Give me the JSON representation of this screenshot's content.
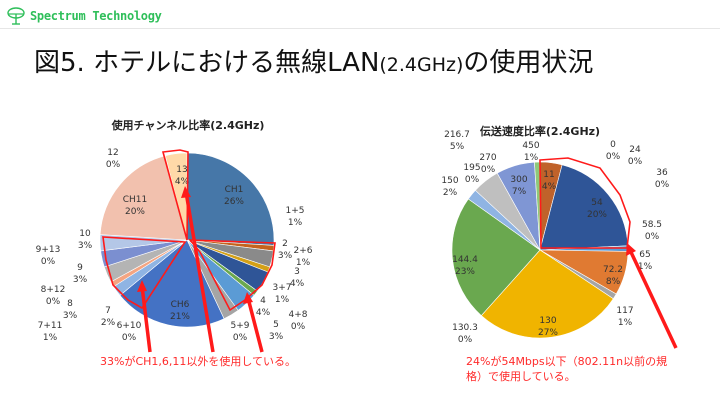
{
  "header": {
    "logo_text": "Spectrum Technology",
    "title_main": "図5. ホテルにおける無線LAN",
    "title_paren": "(2.4GHz)",
    "title_tail": "の使用状況"
  },
  "chart_data": [
    {
      "type": "pie",
      "title": "使用チャンネル比率(2.4GHz)",
      "start": "top",
      "direction": "clockwise",
      "slices": [
        {
          "label": "CH1",
          "pct_label": "26%",
          "value": 26,
          "color": "#4677a8"
        },
        {
          "label": "1+5",
          "pct_label": "1%",
          "value": 1,
          "color": "#c5631d"
        },
        {
          "label": "2",
          "pct_label": "3%",
          "value": 3,
          "color": "#8a8a8a"
        },
        {
          "label": "2+6",
          "pct_label": "1%",
          "value": 1,
          "color": "#d4a017"
        },
        {
          "label": "3",
          "pct_label": "4%",
          "value": 4,
          "color": "#2f5597"
        },
        {
          "label": "3+7",
          "pct_label": "1%",
          "value": 1,
          "color": "#6aa84f"
        },
        {
          "label": "4",
          "pct_label": "4%",
          "value": 4,
          "color": "#5b9bd5"
        },
        {
          "label": "4+8",
          "pct_label": "0%",
          "value": 0,
          "color": "#ed7d31"
        },
        {
          "label": "5",
          "pct_label": "3%",
          "value": 3,
          "color": "#a5a5a5"
        },
        {
          "label": "5+9",
          "pct_label": "0%",
          "value": 0,
          "color": "#ffc000"
        },
        {
          "label": "CH6",
          "pct_label": "21%",
          "value": 21,
          "color": "#4472c4"
        },
        {
          "label": "6+10",
          "pct_label": "0%",
          "value": 0,
          "color": "#70ad47"
        },
        {
          "label": "7",
          "pct_label": "2%",
          "value": 2,
          "color": "#8fb4e3"
        },
        {
          "label": "7+11",
          "pct_label": "1%",
          "value": 1,
          "color": "#f4a582"
        },
        {
          "label": "8",
          "pct_label": "3%",
          "value": 3,
          "color": "#b4b4b4"
        },
        {
          "label": "8+12",
          "pct_label": "0%",
          "value": 0,
          "color": "#e0a000"
        },
        {
          "label": "9",
          "pct_label": "3%",
          "value": 3,
          "color": "#7b8fd0"
        },
        {
          "label": "9+13",
          "pct_label": "0%",
          "value": 0,
          "color": "#8fc97a"
        },
        {
          "label": "10",
          "pct_label": "3%",
          "value": 3,
          "color": "#b4c7e7"
        },
        {
          "label": "CH11",
          "pct_label": "20%",
          "value": 20,
          "color": "#f2c1ae"
        },
        {
          "label": "12",
          "pct_label": "0%",
          "value": 0,
          "color": "#c9c9c9"
        },
        {
          "label": "13",
          "pct_label": "4%",
          "value": 4,
          "color": "#ffd9a8"
        }
      ],
      "annotation": "33%がCH1,6,11以外を使用している。"
    },
    {
      "type": "pie",
      "title": "伝送速度比率(2.4GHz)",
      "start": "top",
      "direction": "clockwise",
      "slices": [
        {
          "label": "0",
          "pct_label": "0%",
          "value": 0,
          "color": "#4472c4"
        },
        {
          "label": "11",
          "pct_label": "4%",
          "value": 4,
          "color": "#c0622a"
        },
        {
          "label": "24",
          "pct_label": "0%",
          "value": 0,
          "color": "#a5a5a5"
        },
        {
          "label": "36",
          "pct_label": "0%",
          "value": 0,
          "color": "#ffc000"
        },
        {
          "label": "54",
          "pct_label": "20%",
          "value": 20,
          "color": "#2f5597"
        },
        {
          "label": "58.5",
          "pct_label": "0%",
          "value": 0,
          "color": "#70ad47"
        },
        {
          "label": "65",
          "pct_label": "1%",
          "value": 1,
          "color": "#5b9bd5"
        },
        {
          "label": "72.2",
          "pct_label": "8%",
          "value": 8,
          "color": "#e07a32"
        },
        {
          "label": "117",
          "pct_label": "1%",
          "value": 1,
          "color": "#a5a5a5"
        },
        {
          "label": "130",
          "pct_label": "27%",
          "value": 27,
          "color": "#f0b400"
        },
        {
          "label": "130.3",
          "pct_label": "0%",
          "value": 0,
          "color": "#4472c4"
        },
        {
          "label": "144.4",
          "pct_label": "23%",
          "value": 23,
          "color": "#6aa84f"
        },
        {
          "label": "150",
          "pct_label": "2%",
          "value": 2,
          "color": "#8fb4e3"
        },
        {
          "label": "195",
          "pct_label": "0%",
          "value": 0,
          "color": "#e07a32"
        },
        {
          "label": "216.7",
          "pct_label": "5%",
          "value": 5,
          "color": "#bfbfbf"
        },
        {
          "label": "270",
          "pct_label": "0%",
          "value": 0,
          "color": "#e0a000"
        },
        {
          "label": "300",
          "pct_label": "7%",
          "value": 7,
          "color": "#7f96d4"
        },
        {
          "label": "450",
          "pct_label": "1%",
          "value": 1,
          "color": "#8fc97a"
        }
      ],
      "annotation": "24%が54Mbps以下（802.11n以前の規格）で使用している。",
      "annotation_lines": [
        "24%が54Mbps以下（802.11n以前の規",
        "格）で使用している。"
      ]
    }
  ]
}
